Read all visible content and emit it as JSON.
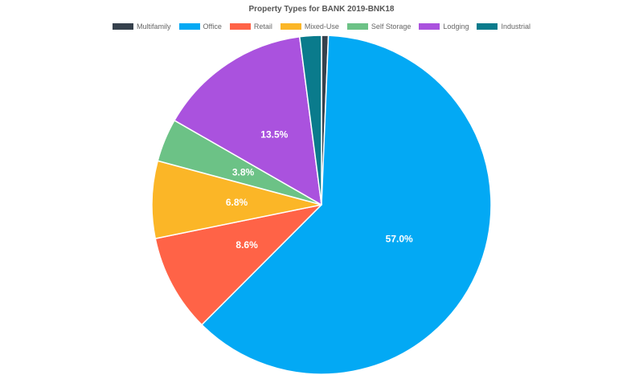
{
  "chart_data": {
    "type": "pie",
    "title": "Property Types for BANK 2019-BNK18",
    "legend_position": "top",
    "series": [
      {
        "name": "Multifamily",
        "value": 0.6,
        "color": "#36414d",
        "label": ""
      },
      {
        "name": "Office",
        "value": 57.0,
        "color": "#03a9f4",
        "label": "57.0%"
      },
      {
        "name": "Retail",
        "value": 8.6,
        "color": "#ff6347",
        "label": "8.6%"
      },
      {
        "name": "Mixed-Use",
        "value": 6.8,
        "color": "#fbb627",
        "label": "6.8%"
      },
      {
        "name": "Self Storage",
        "value": 3.8,
        "color": "#6cc286",
        "label": "3.8%"
      },
      {
        "name": "Lodging",
        "value": 13.5,
        "color": "#aa52de",
        "label": "13.5%"
      },
      {
        "name": "Industrial",
        "value": 1.9,
        "color": "#0a7b8c",
        "label": ""
      }
    ]
  }
}
